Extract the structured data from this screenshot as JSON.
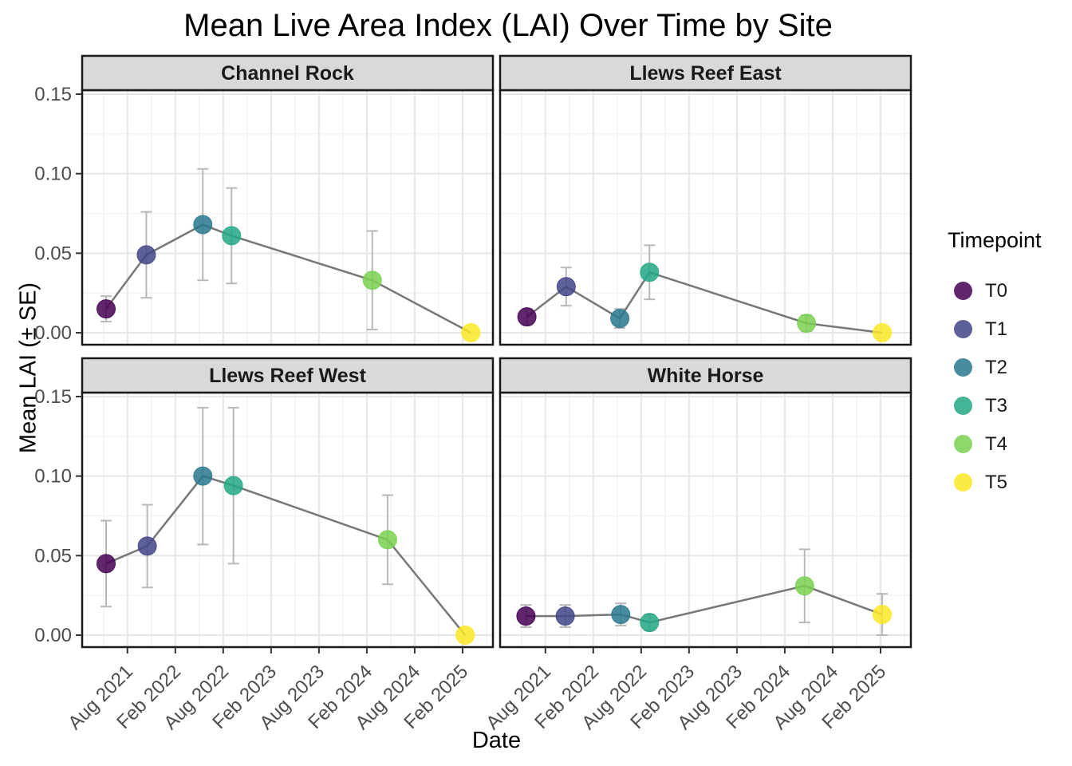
{
  "title": "Mean Live Area Index (LAI) Over Time by Site",
  "axes": {
    "x_title": "Date",
    "y_title": "Mean LAI (± SE)"
  },
  "legend": {
    "title": "Timepoint",
    "items": [
      {
        "label": "T0",
        "color": "#440154"
      },
      {
        "label": "T1",
        "color": "#414487"
      },
      {
        "label": "T2",
        "color": "#2a788e"
      },
      {
        "label": "T3",
        "color": "#22a884"
      },
      {
        "label": "T4",
        "color": "#7ad151"
      },
      {
        "label": "T5",
        "color": "#fde725"
      }
    ]
  },
  "chart_data": {
    "type": "line",
    "title": "Mean Live Area Index (LAI) Over Time by Site",
    "xlabel": "Date",
    "ylabel": "Mean LAI (± SE)",
    "legend_title": "Timepoint",
    "legend_position": "right",
    "grid": true,
    "facet_variable": "Site",
    "x_unit": "decimal_year",
    "x_domain": [
      2021.11,
      2025.4
    ],
    "y_domain": [
      -0.0075,
      0.1525
    ],
    "x_ticks": [
      {
        "value": 2021.583,
        "label": "Aug 2021"
      },
      {
        "value": 2022.083,
        "label": "Feb 2022"
      },
      {
        "value": 2022.583,
        "label": "Aug 2022"
      },
      {
        "value": 2023.083,
        "label": "Feb 2023"
      },
      {
        "value": 2023.583,
        "label": "Aug 2023"
      },
      {
        "value": 2024.083,
        "label": "Feb 2024"
      },
      {
        "value": 2024.583,
        "label": "Aug 2024"
      },
      {
        "value": 2025.083,
        "label": "Feb 2025"
      }
    ],
    "x_minor_ticks": [
      2021.333,
      2021.833,
      2022.333,
      2022.833,
      2023.333,
      2023.833,
      2024.333,
      2024.833,
      2025.333
    ],
    "y_ticks": [
      {
        "value": 0.0,
        "label": "0.00"
      },
      {
        "value": 0.05,
        "label": "0.05"
      },
      {
        "value": 0.1,
        "label": "0.10"
      },
      {
        "value": 0.15,
        "label": "0.15"
      }
    ],
    "y_minor_ticks": [
      0.025,
      0.075,
      0.125
    ],
    "timepoints": [
      "T0",
      "T1",
      "T2",
      "T3",
      "T4",
      "T5"
    ],
    "colors": {
      "T0": "#440154",
      "T1": "#414487",
      "T2": "#2a788e",
      "T3": "#22a884",
      "T4": "#7ad151",
      "T5": "#fde725"
    },
    "facets": [
      {
        "site": "Channel Rock",
        "points": [
          {
            "timepoint": "T0",
            "x": 2021.36,
            "mean": 0.015,
            "se": 0.008
          },
          {
            "timepoint": "T1",
            "x": 2021.78,
            "mean": 0.049,
            "se": 0.027
          },
          {
            "timepoint": "T2",
            "x": 2022.37,
            "mean": 0.068,
            "se": 0.035
          },
          {
            "timepoint": "T3",
            "x": 2022.67,
            "mean": 0.061,
            "se": 0.03
          },
          {
            "timepoint": "T4",
            "x": 2024.14,
            "mean": 0.033,
            "se": 0.031
          },
          {
            "timepoint": "T5",
            "x": 2025.17,
            "mean": 0.0,
            "se": 0.0
          }
        ]
      },
      {
        "site": "Llews Reef East",
        "points": [
          {
            "timepoint": "T0",
            "x": 2021.39,
            "mean": 0.01,
            "se": 0.005
          },
          {
            "timepoint": "T1",
            "x": 2021.8,
            "mean": 0.029,
            "se": 0.012
          },
          {
            "timepoint": "T2",
            "x": 2022.36,
            "mean": 0.009,
            "se": 0.006
          },
          {
            "timepoint": "T3",
            "x": 2022.67,
            "mean": 0.038,
            "se": 0.017
          },
          {
            "timepoint": "T4",
            "x": 2024.31,
            "mean": 0.006,
            "se": 0.005
          },
          {
            "timepoint": "T5",
            "x": 2025.1,
            "mean": 0.0,
            "se": 0.0
          }
        ]
      },
      {
        "site": "Llews Reef West",
        "points": [
          {
            "timepoint": "T0",
            "x": 2021.36,
            "mean": 0.045,
            "se": 0.027
          },
          {
            "timepoint": "T1",
            "x": 2021.79,
            "mean": 0.056,
            "se": 0.026
          },
          {
            "timepoint": "T2",
            "x": 2022.37,
            "mean": 0.1,
            "se": 0.043
          },
          {
            "timepoint": "T3",
            "x": 2022.69,
            "mean": 0.094,
            "se": 0.049
          },
          {
            "timepoint": "T4",
            "x": 2024.3,
            "mean": 0.06,
            "se": 0.028
          },
          {
            "timepoint": "T5",
            "x": 2025.11,
            "mean": 0.0,
            "se": 0.0
          }
        ]
      },
      {
        "site": "White Horse",
        "points": [
          {
            "timepoint": "T0",
            "x": 2021.38,
            "mean": 0.012,
            "se": 0.007
          },
          {
            "timepoint": "T1",
            "x": 2021.79,
            "mean": 0.012,
            "se": 0.007
          },
          {
            "timepoint": "T2",
            "x": 2022.37,
            "mean": 0.013,
            "se": 0.007
          },
          {
            "timepoint": "T3",
            "x": 2022.67,
            "mean": 0.008,
            "se": 0.005
          },
          {
            "timepoint": "T4",
            "x": 2024.29,
            "mean": 0.031,
            "se": 0.023
          },
          {
            "timepoint": "T5",
            "x": 2025.1,
            "mean": 0.013,
            "se": 0.013
          }
        ]
      }
    ]
  },
  "style": {
    "strip_fill": "#d9d9d9",
    "strip_text_color": "#1a1a1a",
    "panel_border": "#1a1a1a",
    "panel_fill": "#ffffff",
    "grid_major": "#e6e6e6",
    "grid_minor": "#f2f2f2",
    "series_line_color": "#777777",
    "errorbar_color": "#b8b8b8",
    "tick_color": "#333333",
    "tick_label_color": "#4d4d4d",
    "point_opacity": 0.85
  }
}
